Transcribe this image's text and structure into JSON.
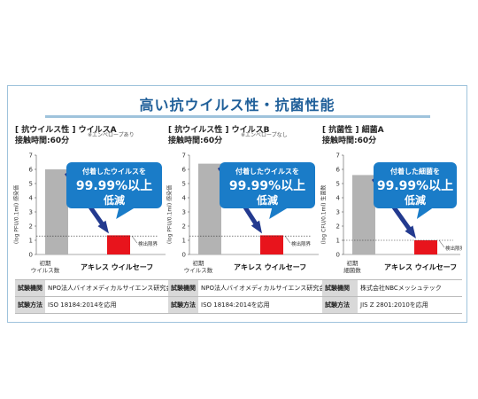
{
  "title": "高い抗ウイルス性・抗菌性能",
  "panels": [
    {
      "head": "[ 抗ウイルス性 ] ウイルスA",
      "contact": "接触時間:60分",
      "note": "※エンベロープあり",
      "ylabel": "(log PFU/0.1ml) 感染価",
      "bubble": [
        "付着したウイルスを",
        "99.99%以上",
        "低減"
      ],
      "xlabel_left": [
        "初期",
        "ウイルス数"
      ],
      "xlabel_right": "アキレス ウイルセーフ",
      "limit_label": "検出限界",
      "rows": [
        {
          "k": "試験機関",
          "v": "NPO法人バイオメディカルサイエンス研究会"
        },
        {
          "k": "試験方法",
          "v": "ISO 18184:2014を応用"
        }
      ]
    },
    {
      "head": "[ 抗ウイルス性 ] ウイルスB",
      "contact": "接触時間:60分",
      "note": "※エンベロープなし",
      "ylabel": "(log PFU/0.1ml) 感染価",
      "bubble": [
        "付着したウイルスを",
        "99.99%以上",
        "低減"
      ],
      "xlabel_left": [
        "初期",
        "ウイルス数"
      ],
      "xlabel_right": "アキレス ウイルセーフ",
      "limit_label": "検出限界",
      "rows": [
        {
          "k": "試験機関",
          "v": "NPO法人バイオメディカルサイエンス研究会"
        },
        {
          "k": "試験方法",
          "v": "ISO 18184:2014を応用"
        }
      ]
    },
    {
      "head": "[ 抗菌性 ] 細菌A",
      "contact": "接触時間:60分",
      "note": "",
      "ylabel": "(log CFU/0.1ml) 生菌数",
      "bubble": [
        "付着した細菌を",
        "99.99%以上",
        "低減"
      ],
      "xlabel_left": [
        "初期",
        "細菌数"
      ],
      "xlabel_right": "アキレス ウイルセーフ",
      "limit_label": "検出限界",
      "rows": [
        {
          "k": "試験機関",
          "v": "株式会社NBCメッシュテック"
        },
        {
          "k": "試験方法",
          "v": "JIS Z 2801:2010を応用"
        }
      ]
    }
  ],
  "colors": {
    "accent": "#1f5f99",
    "bubble": "#1a7cc8",
    "bar_initial": "#b3b3b3",
    "bar_product": "#e8141c",
    "arrow": "#233a8f"
  },
  "chart_data": [
    {
      "type": "bar",
      "categories": [
        "初期 ウイルス数",
        "アキレス ウイルセーフ"
      ],
      "values": [
        6.0,
        1.35
      ],
      "ylim": [
        0,
        7
      ],
      "yticks": [
        0,
        1,
        2,
        3,
        4,
        5,
        6,
        7
      ],
      "detection_limit": 1.3
    },
    {
      "type": "bar",
      "categories": [
        "初期 ウイルス数",
        "アキレス ウイルセーフ"
      ],
      "values": [
        6.4,
        1.35
      ],
      "ylim": [
        0,
        7
      ],
      "yticks": [
        0,
        1,
        2,
        3,
        4,
        5,
        6,
        7
      ],
      "detection_limit": 1.3
    },
    {
      "type": "bar",
      "categories": [
        "初期 細菌数",
        "アキレス ウイルセーフ"
      ],
      "values": [
        5.6,
        1.0
      ],
      "ylim": [
        0,
        7
      ],
      "yticks": [
        0,
        1,
        2,
        3,
        4,
        5,
        6,
        7
      ],
      "detection_limit": 1.0
    }
  ]
}
